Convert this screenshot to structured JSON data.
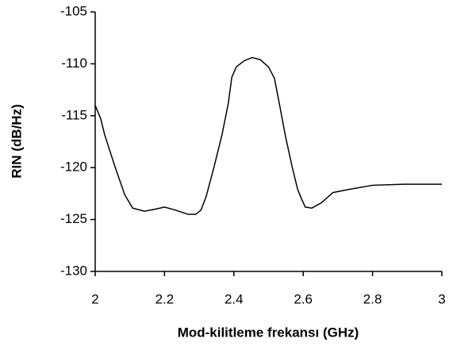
{
  "chart_data": {
    "type": "line",
    "x_label": "Mod-kilitleme frekansı (GHz)",
    "y_label": "RIN (dB/Hz)",
    "xlim": [
      2,
      3
    ],
    "xticks": [
      2,
      2.2,
      2.4,
      2.6,
      2.8,
      3
    ],
    "ylim": [
      -130,
      -105
    ],
    "yticks": [
      -130,
      -125,
      -120,
      -115,
      -110,
      -105
    ],
    "series": [
      {
        "color": "#000000",
        "x": [
          2.0,
          2.016,
          2.027,
          2.057,
          2.085,
          2.108,
          2.142,
          2.174,
          2.2,
          2.232,
          2.268,
          2.29,
          2.305,
          2.32,
          2.343,
          2.366,
          2.384,
          2.394,
          2.407,
          2.43,
          2.453,
          2.476,
          2.5,
          2.517,
          2.531,
          2.549,
          2.568,
          2.584,
          2.595,
          2.606,
          2.625,
          2.652,
          2.686,
          2.732,
          2.8,
          2.892,
          3.0
        ],
        "values": [
          -114.0,
          -115.3,
          -116.8,
          -119.9,
          -122.6,
          -123.9,
          -124.2,
          -124.0,
          -123.8,
          -124.1,
          -124.5,
          -124.5,
          -124.1,
          -122.8,
          -119.9,
          -116.8,
          -113.8,
          -111.3,
          -110.3,
          -109.7,
          -109.4,
          -109.6,
          -110.3,
          -111.4,
          -113.8,
          -117.0,
          -119.9,
          -122.1,
          -123.0,
          -123.8,
          -123.9,
          -123.4,
          -122.4,
          -122.1,
          -121.7,
          -121.6,
          -121.6
        ]
      }
    ]
  }
}
